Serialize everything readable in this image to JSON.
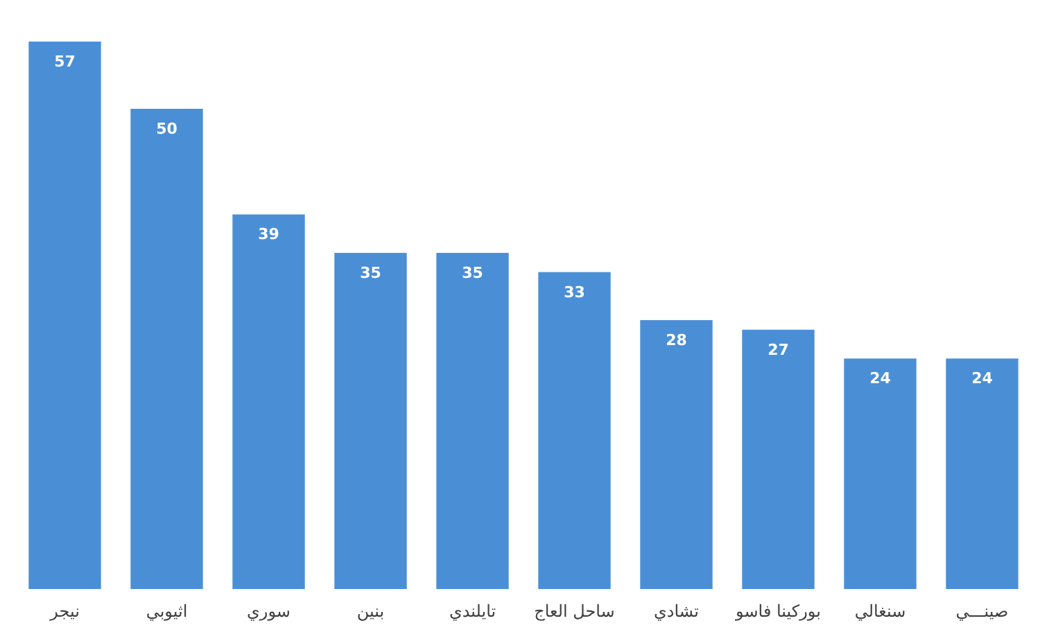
{
  "chart_data": {
    "type": "bar",
    "categories": [
      "نيجر",
      "اثيوبي",
      "سوري",
      "بنين",
      "تايلندي",
      "ساحل العاج",
      "تشادي",
      "بوركينا فاسو",
      "سنغالي",
      "صينـــي"
    ],
    "values": [
      57,
      50,
      39,
      35,
      35,
      33,
      28,
      27,
      24,
      24
    ],
    "color": "#4a8fd6",
    "data_labels": true
  }
}
